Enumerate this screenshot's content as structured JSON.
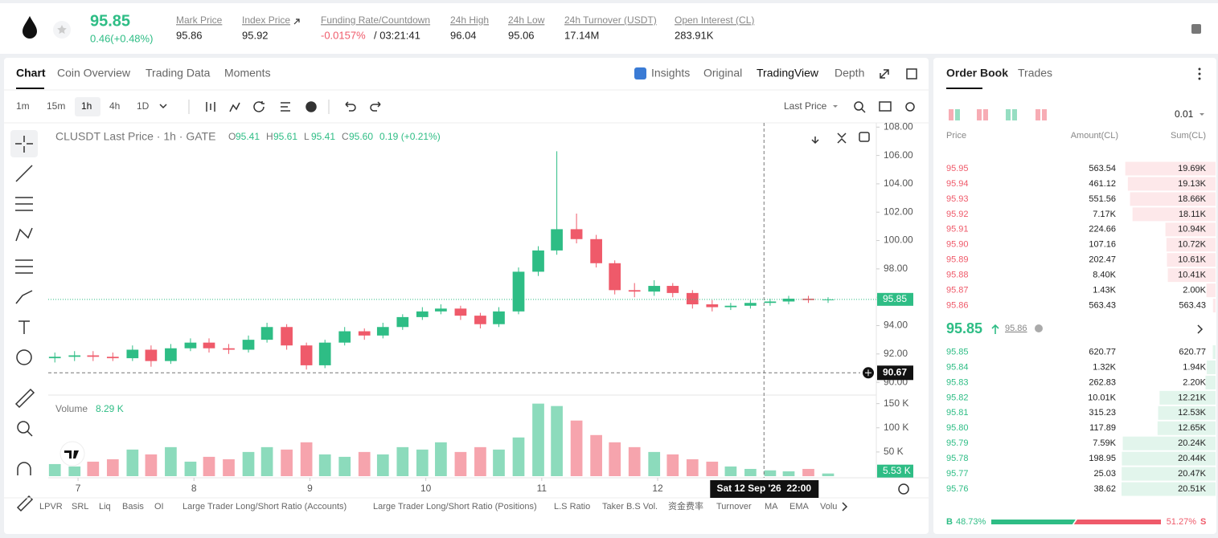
{
  "header": {
    "price": "95.85",
    "change": "0.46(+0.48%)",
    "stats": [
      {
        "label": "Mark Price",
        "value": "95.86"
      },
      {
        "label": "Index Price",
        "value": "95.92"
      },
      {
        "label": "24h High",
        "value": "96.04"
      },
      {
        "label": "24h Low",
        "value": "95.06"
      },
      {
        "label": "24h Turnover (USDT)",
        "value": "17.14M"
      },
      {
        "label": "Open Interest (CL)",
        "value": "283.91K"
      }
    ],
    "funding": {
      "label": "Funding Rate/Countdown",
      "rate": "-0.0157%",
      "countdown": "/ 03:21:41"
    }
  },
  "tabs": [
    "Chart",
    "Coin Overview",
    "Trading Data",
    "Moments"
  ],
  "view_tabs": [
    "Insights",
    "Original",
    "TradingView",
    "Depth"
  ],
  "intervals": [
    "1m",
    "15m",
    "1h",
    "4h",
    "1D"
  ],
  "price_type": "Last Price",
  "chart_data": {
    "type": "candlestick",
    "title": "CLUSDT Last Price · 1h · GATE",
    "legend": [
      {
        "key": "O",
        "value": "95.41"
      },
      {
        "key": "H",
        "value": "95.61"
      },
      {
        "key": "L",
        "value": "95.41"
      },
      {
        "key": "C",
        "value": "95.60"
      }
    ],
    "legend_change": "0.19 (+0.21%)",
    "x": [
      6.8,
      6.97,
      7.13,
      7.3,
      7.47,
      7.63,
      7.8,
      7.97,
      8.13,
      8.3,
      8.47,
      8.63,
      8.8,
      8.97,
      9.13,
      9.3,
      9.47,
      9.63,
      9.8,
      9.97,
      10.13,
      10.3,
      10.47,
      10.63,
      10.8,
      10.97,
      11.13,
      11.3,
      11.47,
      11.63,
      11.8,
      11.97,
      12.13,
      12.3,
      12.47,
      12.63,
      12.8,
      12.97,
      13.13,
      13.3,
      13.47
    ],
    "open": [
      91.7,
      91.8,
      91.9,
      91.8,
      91.7,
      92.3,
      91.5,
      92.4,
      92.8,
      92.4,
      92.3,
      93.0,
      93.9,
      92.6,
      91.2,
      92.8,
      93.6,
      93.3,
      93.9,
      94.6,
      95.0,
      95.2,
      94.7,
      94.1,
      95.0,
      97.8,
      99.3,
      100.8,
      100.1,
      98.4,
      96.5,
      96.4,
      96.8,
      96.3,
      95.5,
      95.3,
      95.4,
      95.6,
      95.7,
      95.9,
      95.8
    ],
    "high": [
      92.1,
      92.2,
      92.2,
      92.1,
      92.6,
      92.6,
      92.7,
      93.1,
      93.1,
      92.7,
      93.3,
      94.2,
      94.1,
      92.8,
      93.0,
      93.9,
      93.8,
      94.2,
      94.8,
      95.3,
      95.5,
      95.4,
      94.9,
      95.3,
      98.1,
      99.6,
      106.3,
      101.9,
      100.4,
      98.6,
      97.0,
      97.2,
      97.0,
      96.5,
      95.8,
      95.6,
      95.8,
      95.9,
      96.1,
      96.1,
      96.0
    ],
    "low": [
      91.4,
      91.5,
      91.5,
      91.5,
      91.5,
      91.1,
      91.3,
      92.2,
      92.1,
      92.0,
      92.1,
      92.8,
      92.3,
      90.9,
      91.0,
      92.6,
      93.0,
      93.1,
      93.7,
      94.4,
      94.8,
      94.4,
      93.8,
      93.9,
      94.8,
      97.5,
      99.0,
      99.8,
      98.1,
      96.2,
      96.0,
      96.1,
      96.0,
      95.2,
      95.0,
      95.1,
      95.2,
      95.4,
      95.5,
      95.6,
      95.6
    ],
    "close": [
      91.8,
      91.9,
      91.8,
      91.7,
      92.3,
      91.5,
      92.4,
      92.8,
      92.4,
      92.3,
      93.0,
      93.9,
      92.6,
      91.2,
      92.8,
      93.6,
      93.3,
      93.9,
      94.6,
      95.0,
      95.2,
      94.7,
      94.1,
      95.0,
      97.8,
      99.3,
      100.8,
      100.1,
      98.4,
      96.5,
      96.4,
      96.8,
      96.3,
      95.5,
      95.3,
      95.4,
      95.6,
      95.7,
      95.9,
      95.8,
      95.85
    ],
    "xlim": [
      6.743,
      13.886
    ],
    "xticks": [
      7,
      8,
      9,
      10,
      11,
      12
    ],
    "ylim": [
      89.1,
      108.3
    ],
    "yticks": [
      {
        "value": 90,
        "label": "90.00"
      },
      {
        "value": 92,
        "label": "92.00"
      },
      {
        "value": 94,
        "label": "94.00"
      },
      {
        "value": 96,
        "label": "96.00"
      },
      {
        "value": 98,
        "label": "98.00"
      },
      {
        "value": 100,
        "label": "100.00"
      },
      {
        "value": 102,
        "label": "102.00"
      },
      {
        "value": 104,
        "label": "104.00"
      },
      {
        "value": 106,
        "label": "106.00"
      },
      {
        "value": 108,
        "label": "108.00"
      }
    ],
    "up_color": "#2ebd85",
    "down_color": "#ef5a6a",
    "last_price": 95.85,
    "crosshair": {
      "x": 12.917,
      "y": 90.67,
      "x_label": "Sat 12 Sep '26  22:00"
    },
    "volume": {
      "name": "Volume",
      "current": "8.29 K",
      "values": [
        25000,
        20000,
        30000,
        35000,
        55000,
        45000,
        60000,
        30000,
        40000,
        35000,
        50000,
        60000,
        55000,
        70000,
        45000,
        40000,
        50000,
        45000,
        60000,
        55000,
        70000,
        50000,
        60000,
        55000,
        80000,
        150000,
        145000,
        115000,
        85000,
        70000,
        60000,
        50000,
        45000,
        35000,
        30000,
        20000,
        15000,
        12000,
        10000,
        15000,
        5530
      ],
      "last_label": "5.53 K",
      "ylim": [
        0,
        166000
      ],
      "yticks": [
        {
          "value": 50000,
          "label": "50 K"
        },
        {
          "value": 100000,
          "label": "100 K"
        },
        {
          "value": 150000,
          "label": "150 K"
        }
      ]
    }
  },
  "indicators": [
    "LPVR",
    "SRL",
    "Liq",
    "Basis",
    "OI",
    "Large Trader Long/Short Ratio (Accounts)",
    "Large Trader Long/Short Ratio (Positions)",
    "L.S Ratio",
    "Taker B.S Vol.",
    "资金费率",
    "Turnover",
    "MA",
    "EMA",
    "Volu"
  ],
  "order_book": {
    "tabs": [
      "Order Book",
      "Trades"
    ],
    "tick": "0.01",
    "columns": [
      "Price",
      "Amount(CL)",
      "Sum(CL)"
    ],
    "asks": [
      [
        "95.95",
        "563.54",
        "19.69K"
      ],
      [
        "95.94",
        "461.12",
        "19.13K"
      ],
      [
        "95.93",
        "551.56",
        "18.66K"
      ],
      [
        "95.92",
        "7.17K",
        "18.11K"
      ],
      [
        "95.91",
        "224.66",
        "10.94K"
      ],
      [
        "95.90",
        "107.16",
        "10.72K"
      ],
      [
        "95.89",
        "202.47",
        "10.61K"
      ],
      [
        "95.88",
        "8.40K",
        "10.41K"
      ],
      [
        "95.87",
        "1.43K",
        "2.00K"
      ],
      [
        "95.86",
        "563.43",
        "563.43"
      ]
    ],
    "mid": {
      "price": "95.85",
      "mark": "95.86"
    },
    "bids": [
      [
        "95.85",
        "620.77",
        "620.77"
      ],
      [
        "95.84",
        "1.32K",
        "1.94K"
      ],
      [
        "95.83",
        "262.83",
        "2.20K"
      ],
      [
        "95.82",
        "10.01K",
        "12.21K"
      ],
      [
        "95.81",
        "315.23",
        "12.53K"
      ],
      [
        "95.80",
        "117.89",
        "12.65K"
      ],
      [
        "95.79",
        "7.59K",
        "20.24K"
      ],
      [
        "95.78",
        "198.95",
        "20.44K"
      ],
      [
        "95.77",
        "25.03",
        "20.47K"
      ],
      [
        "95.76",
        "38.62",
        "20.51K"
      ]
    ],
    "buy_tag": "B",
    "sell_tag": "S",
    "buy": {
      "value": 48.73,
      "label": "48.73%"
    },
    "sell": {
      "value": 51.27,
      "label": "51.27%"
    }
  }
}
